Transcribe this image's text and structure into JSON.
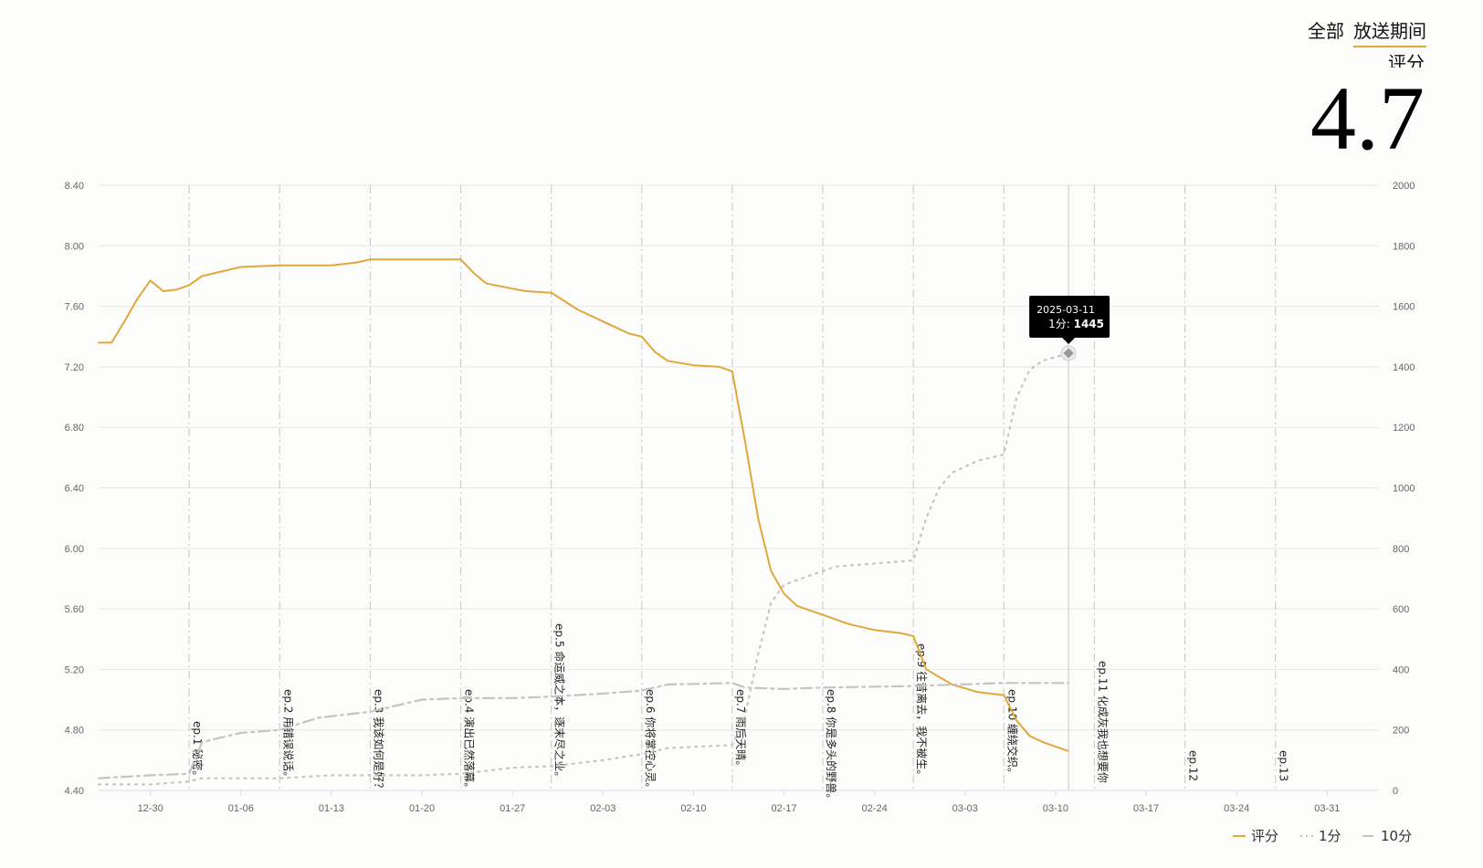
{
  "tabs": {
    "all": "全部",
    "airing": "放送期间"
  },
  "score": {
    "label": "评分",
    "value": "4.7"
  },
  "tooltip": {
    "date": "2025-03-11",
    "series": "1分",
    "value": "1445"
  },
  "colors": {
    "score": "#e0a83b",
    "one": "#c4c4c4",
    "ten": "#c4c4c4",
    "grid": "#e6e6e6"
  },
  "chart_data": {
    "type": "line",
    "x_ticks": [
      "12-30",
      "01-06",
      "01-13",
      "01-20",
      "01-27",
      "02-03",
      "02-10",
      "02-17",
      "02-24",
      "03-03",
      "03-10",
      "03-17",
      "03-24",
      "03-31"
    ],
    "x_range": [
      "2024-12-26",
      "2025-04-04"
    ],
    "y_left": {
      "ticks": [
        "4.40",
        "4.80",
        "5.20",
        "5.60",
        "6.00",
        "6.40",
        "6.80",
        "7.20",
        "7.60",
        "8.00",
        "8.40"
      ],
      "range": [
        4.4,
        8.4
      ]
    },
    "y_right": {
      "ticks": [
        "0",
        "200",
        "400",
        "600",
        "800",
        "1000",
        "1200",
        "1400",
        "1600",
        "1800",
        "2000"
      ],
      "range": [
        0,
        2000
      ]
    },
    "episodes": [
      {
        "date": "2025-01-02",
        "label": "ep.1 秘密。",
        "pos": "low"
      },
      {
        "date": "2025-01-09",
        "label": "ep.2 用错误说话。",
        "pos": "mid"
      },
      {
        "date": "2025-01-16",
        "label": "ep.3 我该如何是好？",
        "pos": "mid"
      },
      {
        "date": "2025-01-23",
        "label": "ep.4 演出已然落幕。",
        "pos": "mid"
      },
      {
        "date": "2025-01-30",
        "label": "ep.5 命运威之本，逐末尽之业。",
        "pos": "high"
      },
      {
        "date": "2025-02-06",
        "label": "ep.6 你将掌控心灵。",
        "pos": "mid"
      },
      {
        "date": "2025-02-13",
        "label": "ep.7 雨后天晴。",
        "pos": "mid"
      },
      {
        "date": "2025-02-20",
        "label": "ep.8 你是多头的野兽。",
        "pos": "mid"
      },
      {
        "date": "2025-02-27",
        "label": "ep.9 往昔离去，我不被生。",
        "pos": "high2"
      },
      {
        "date": "2025-03-06",
        "label": "ep.10 缠绕交织。",
        "pos": "mid"
      },
      {
        "date": "2025-03-13",
        "label": "ep.11 化成灰我也想要你",
        "pos": "mid2"
      },
      {
        "date": "2025-03-20",
        "label": "ep.12",
        "pos": "short"
      },
      {
        "date": "2025-03-27",
        "label": "ep.13",
        "pos": "short"
      }
    ],
    "series": [
      {
        "name": "评分",
        "axis": "left",
        "style": "solid",
        "points": [
          [
            "2024-12-26",
            7.36
          ],
          [
            "2024-12-27",
            7.36
          ],
          [
            "2024-12-28",
            7.5
          ],
          [
            "2024-12-29",
            7.65
          ],
          [
            "2024-12-30",
            7.77
          ],
          [
            "2024-12-31",
            7.7
          ],
          [
            "2025-01-01",
            7.71
          ],
          [
            "2025-01-02",
            7.74
          ],
          [
            "2025-01-03",
            7.8
          ],
          [
            "2025-01-04",
            7.82
          ],
          [
            "2025-01-05",
            7.84
          ],
          [
            "2025-01-06",
            7.86
          ],
          [
            "2025-01-09",
            7.87
          ],
          [
            "2025-01-13",
            7.87
          ],
          [
            "2025-01-15",
            7.89
          ],
          [
            "2025-01-16",
            7.91
          ],
          [
            "2025-01-19",
            7.91
          ],
          [
            "2025-01-20",
            7.91
          ],
          [
            "2025-01-23",
            7.91
          ],
          [
            "2025-01-24",
            7.82
          ],
          [
            "2025-01-25",
            7.75
          ],
          [
            "2025-01-28",
            7.7
          ],
          [
            "2025-01-30",
            7.69
          ],
          [
            "2025-02-01",
            7.58
          ],
          [
            "2025-02-03",
            7.5
          ],
          [
            "2025-02-04",
            7.46
          ],
          [
            "2025-02-05",
            7.42
          ],
          [
            "2025-02-06",
            7.4
          ],
          [
            "2025-02-07",
            7.3
          ],
          [
            "2025-02-08",
            7.24
          ],
          [
            "2025-02-10",
            7.21
          ],
          [
            "2025-02-12",
            7.2
          ],
          [
            "2025-02-13",
            7.17
          ],
          [
            "2025-02-14",
            6.7
          ],
          [
            "2025-02-15",
            6.2
          ],
          [
            "2025-02-16",
            5.85
          ],
          [
            "2025-02-17",
            5.7
          ],
          [
            "2025-02-18",
            5.62
          ],
          [
            "2025-02-20",
            5.56
          ],
          [
            "2025-02-22",
            5.5
          ],
          [
            "2025-02-24",
            5.46
          ],
          [
            "2025-02-26",
            5.44
          ],
          [
            "2025-02-27",
            5.42
          ],
          [
            "2025-02-28",
            5.2
          ],
          [
            "2025-03-02",
            5.1
          ],
          [
            "2025-03-04",
            5.05
          ],
          [
            "2025-03-06",
            5.03
          ],
          [
            "2025-03-07",
            4.86
          ],
          [
            "2025-03-08",
            4.76
          ],
          [
            "2025-03-09",
            4.72
          ],
          [
            "2025-03-11",
            4.66
          ]
        ]
      },
      {
        "name": "1分",
        "axis": "right",
        "style": "dotted",
        "points": [
          [
            "2024-12-26",
            20
          ],
          [
            "2024-12-30",
            20
          ],
          [
            "2025-01-02",
            30
          ],
          [
            "2025-01-03",
            40
          ],
          [
            "2025-01-09",
            40
          ],
          [
            "2025-01-13",
            50
          ],
          [
            "2025-01-20",
            50
          ],
          [
            "2025-01-23",
            55
          ],
          [
            "2025-01-27",
            75
          ],
          [
            "2025-01-30",
            80
          ],
          [
            "2025-02-03",
            100
          ],
          [
            "2025-02-06",
            120
          ],
          [
            "2025-02-08",
            140
          ],
          [
            "2025-02-13",
            150
          ],
          [
            "2025-02-14",
            250
          ],
          [
            "2025-02-15",
            450
          ],
          [
            "2025-02-16",
            620
          ],
          [
            "2025-02-17",
            680
          ],
          [
            "2025-02-19",
            710
          ],
          [
            "2025-02-21",
            740
          ],
          [
            "2025-02-24",
            750
          ],
          [
            "2025-02-27",
            760
          ],
          [
            "2025-02-28",
            900
          ],
          [
            "2025-03-01",
            1000
          ],
          [
            "2025-03-02",
            1050
          ],
          [
            "2025-03-04",
            1090
          ],
          [
            "2025-03-06",
            1110
          ],
          [
            "2025-03-07",
            1300
          ],
          [
            "2025-03-08",
            1390
          ],
          [
            "2025-03-09",
            1420
          ],
          [
            "2025-03-11",
            1445
          ]
        ]
      },
      {
        "name": "10分",
        "axis": "right",
        "style": "dashdot",
        "points": [
          [
            "2024-12-26",
            40
          ],
          [
            "2024-12-30",
            50
          ],
          [
            "2025-01-02",
            55
          ],
          [
            "2025-01-03",
            160
          ],
          [
            "2025-01-06",
            190
          ],
          [
            "2025-01-09",
            200
          ],
          [
            "2025-01-12",
            240
          ],
          [
            "2025-01-16",
            260
          ],
          [
            "2025-01-20",
            300
          ],
          [
            "2025-01-23",
            305
          ],
          [
            "2025-01-27",
            305
          ],
          [
            "2025-01-30",
            310
          ],
          [
            "2025-02-03",
            320
          ],
          [
            "2025-02-06",
            330
          ],
          [
            "2025-02-08",
            350
          ],
          [
            "2025-02-13",
            355
          ],
          [
            "2025-02-14",
            340
          ],
          [
            "2025-02-17",
            335
          ],
          [
            "2025-02-20",
            340
          ],
          [
            "2025-02-27",
            345
          ],
          [
            "2025-03-06",
            355
          ],
          [
            "2025-03-11",
            355
          ]
        ]
      }
    ],
    "legend": [
      "评分",
      "1分",
      "10分"
    ],
    "legend_position": "bottom-right",
    "grid": true
  }
}
